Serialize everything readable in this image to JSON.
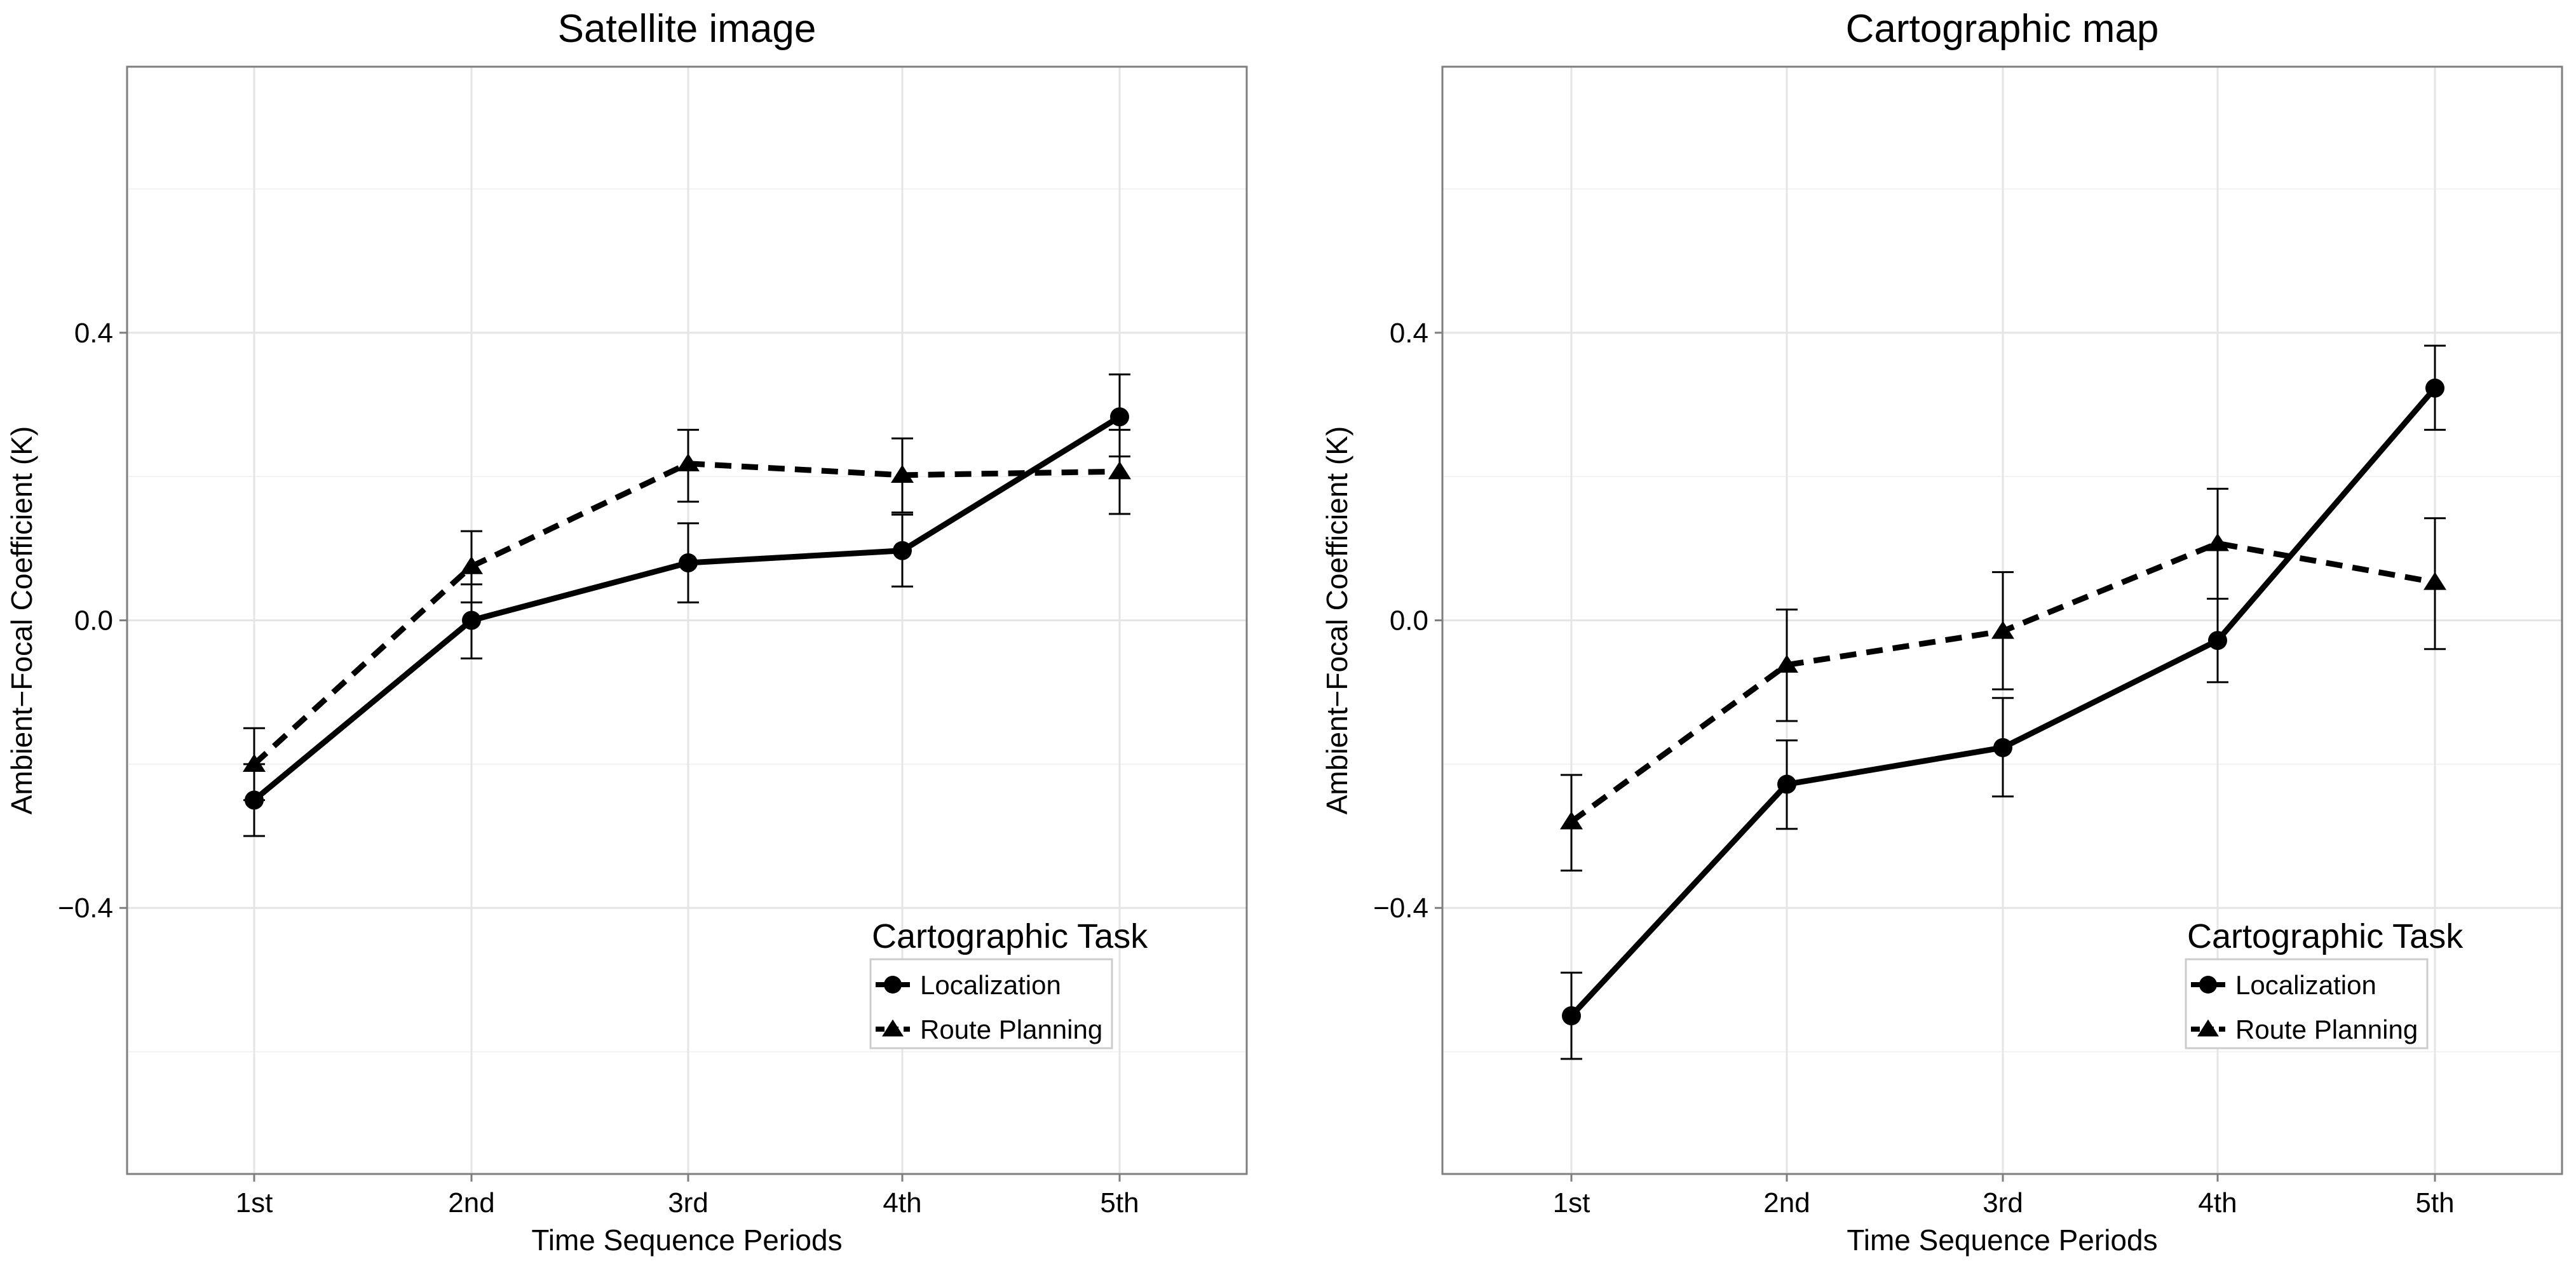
{
  "chart_data": [
    {
      "type": "line",
      "title": "Satellite image",
      "xlabel": "Time Sequence Periods",
      "ylabel": "Ambient−Focal Coefficient (K)",
      "categories": [
        "1st",
        "2nd",
        "3rd",
        "4th",
        "5th"
      ],
      "ylim": [
        -0.77,
        0.77
      ],
      "yticks": [
        -0.4,
        0.0,
        0.4
      ],
      "ytick_labels": [
        "−0.4",
        "0.0",
        "0.4"
      ],
      "grid": true,
      "legend": {
        "title": "Cartographic Task",
        "position": "bottom-right"
      },
      "series": [
        {
          "name": "Localization",
          "marker": "circle",
          "linestyle": "solid",
          "values": [
            -0.25,
            0.0,
            0.08,
            0.097,
            0.283
          ],
          "err_low": [
            -0.3,
            -0.053,
            0.025,
            0.047,
            0.228
          ],
          "err_high": [
            -0.2,
            0.05,
            0.135,
            0.147,
            0.342
          ]
        },
        {
          "name": "Route Planning",
          "marker": "triangle",
          "linestyle": "dashed",
          "values": [
            -0.2,
            0.075,
            0.218,
            0.202,
            0.207
          ],
          "err_low": [
            -0.25,
            0.025,
            0.165,
            0.15,
            0.148
          ],
          "err_high": [
            -0.15,
            0.124,
            0.265,
            0.253,
            0.265
          ]
        }
      ]
    },
    {
      "type": "line",
      "title": "Cartographic map",
      "xlabel": "Time Sequence Periods",
      "ylabel": "Ambient−Focal Coefficient (K)",
      "categories": [
        "1st",
        "2nd",
        "3rd",
        "4th",
        "5th"
      ],
      "ylim": [
        -0.77,
        0.77
      ],
      "yticks": [
        -0.4,
        0.0,
        0.4
      ],
      "ytick_labels": [
        "−0.4",
        "0.0",
        "0.4"
      ],
      "grid": true,
      "legend": {
        "title": "Cartographic Task",
        "position": "bottom-right"
      },
      "series": [
        {
          "name": "Localization",
          "marker": "circle",
          "linestyle": "solid",
          "values": [
            -0.55,
            -0.228,
            -0.177,
            -0.028,
            0.323
          ],
          "err_low": [
            -0.61,
            -0.29,
            -0.245,
            -0.086,
            0.265
          ],
          "err_high": [
            -0.49,
            -0.167,
            -0.108,
            0.03,
            0.382
          ]
        },
        {
          "name": "Route Planning",
          "marker": "triangle",
          "linestyle": "dashed",
          "values": [
            -0.28,
            -0.062,
            -0.015,
            0.107,
            0.053
          ],
          "err_low": [
            -0.348,
            -0.14,
            -0.096,
            0.03,
            -0.04
          ],
          "err_high": [
            -0.215,
            0.015,
            0.067,
            0.183,
            0.142
          ]
        }
      ]
    }
  ]
}
